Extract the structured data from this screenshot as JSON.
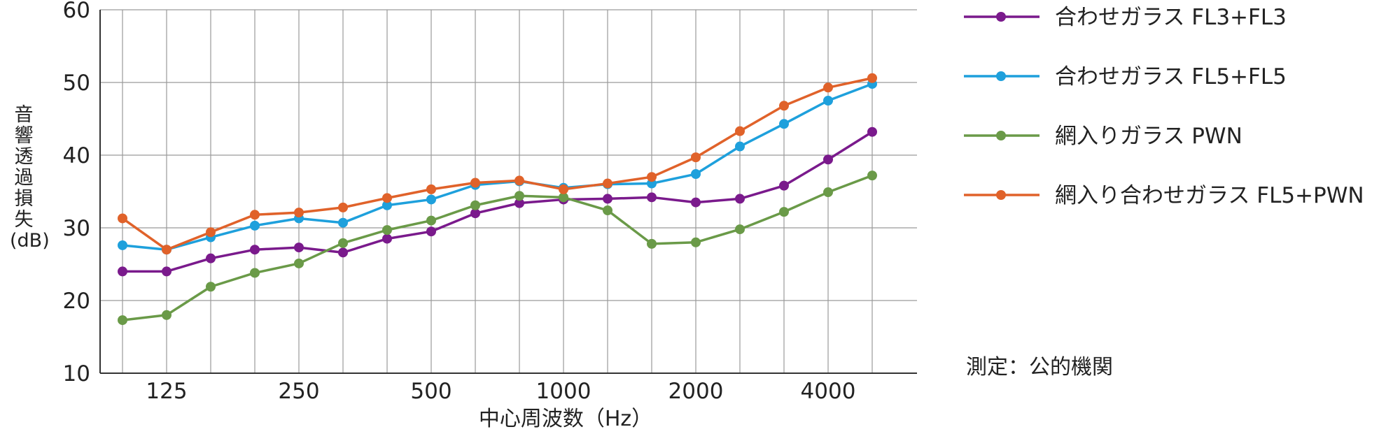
{
  "chart_data": {
    "type": "line",
    "xlabel": "中心周波数（Hz）",
    "ylabel_chars": [
      "音",
      "響",
      "透",
      "過",
      "損",
      "失",
      "(dB)"
    ],
    "ylim": [
      10,
      60
    ],
    "yticks": [
      10,
      20,
      30,
      40,
      50,
      60
    ],
    "x": [
      100,
      125,
      160,
      200,
      250,
      315,
      400,
      500,
      630,
      800,
      1000,
      1250,
      1600,
      2000,
      2500,
      3150,
      4000,
      5000
    ],
    "xtick_labels": [
      "125",
      "250",
      "500",
      "1000",
      "2000",
      "4000"
    ],
    "xtick_index": [
      1,
      4,
      7,
      10,
      13,
      16
    ],
    "grid": true,
    "legend_position": "right",
    "series": [
      {
        "name": "合わせガラス FL3+FL3",
        "color": "#7a1a8c",
        "values": [
          24.0,
          24.0,
          25.8,
          27.0,
          27.3,
          26.6,
          28.5,
          29.5,
          32.0,
          33.4,
          33.9,
          34.0,
          34.2,
          33.5,
          34.0,
          35.8,
          39.4,
          43.2
        ]
      },
      {
        "name": "合わせガラス FL5+FL5",
        "color": "#1ea0dc",
        "values": [
          27.6,
          27.0,
          28.7,
          30.3,
          31.3,
          30.7,
          33.1,
          33.9,
          35.9,
          36.4,
          35.5,
          36.0,
          36.1,
          37.4,
          41.2,
          44.3,
          47.5,
          49.8
        ]
      },
      {
        "name": "網入りガラス PWN",
        "color": "#6a9a48",
        "values": [
          17.3,
          18.0,
          21.9,
          23.8,
          25.1,
          27.9,
          29.7,
          31.0,
          33.1,
          34.4,
          34.2,
          32.4,
          27.8,
          28.0,
          29.8,
          32.2,
          34.9,
          37.2
        ]
      },
      {
        "name": "網入り合わせガラス FL5+PWN",
        "color": "#e0622a",
        "values": [
          31.3,
          27.0,
          29.4,
          31.8,
          32.1,
          32.8,
          34.1,
          35.3,
          36.2,
          36.5,
          35.3,
          36.1,
          37.0,
          39.7,
          43.3,
          46.8,
          49.3,
          50.6
        ]
      }
    ]
  },
  "note": "測定：公的機関"
}
